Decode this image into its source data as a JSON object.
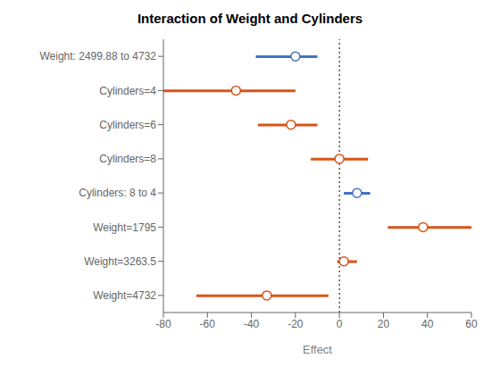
{
  "chart_data": {
    "type": "forest",
    "title": "Interaction of Weight and Cylinders",
    "xlabel": "Effect",
    "categories": [
      "Weight: 2499.88 to 4732",
      "Cylinders=4",
      "Cylinders=6",
      "Cylinders=8",
      "Cylinders: 8 to 4",
      "Weight=1795",
      "Weight=3263.5",
      "Weight=4732"
    ],
    "values": [
      -20,
      -47,
      -22,
      0,
      8,
      38,
      2,
      -33
    ],
    "ci_low": [
      -38,
      -80,
      -37,
      -13,
      2,
      22,
      -1,
      -65
    ],
    "ci_high": [
      -10,
      -20,
      -10,
      13,
      14,
      60,
      8,
      -5
    ],
    "colors": [
      "#4472c4",
      "#d95319",
      "#d95319",
      "#d95319",
      "#4472c4",
      "#d95319",
      "#d95319",
      "#d95319"
    ],
    "xlim": [
      -80,
      60
    ],
    "xticks": [
      -80,
      -60,
      -40,
      -20,
      0,
      20,
      40,
      60
    ],
    "vline": 0,
    "marker": "circle",
    "grid": false
  }
}
